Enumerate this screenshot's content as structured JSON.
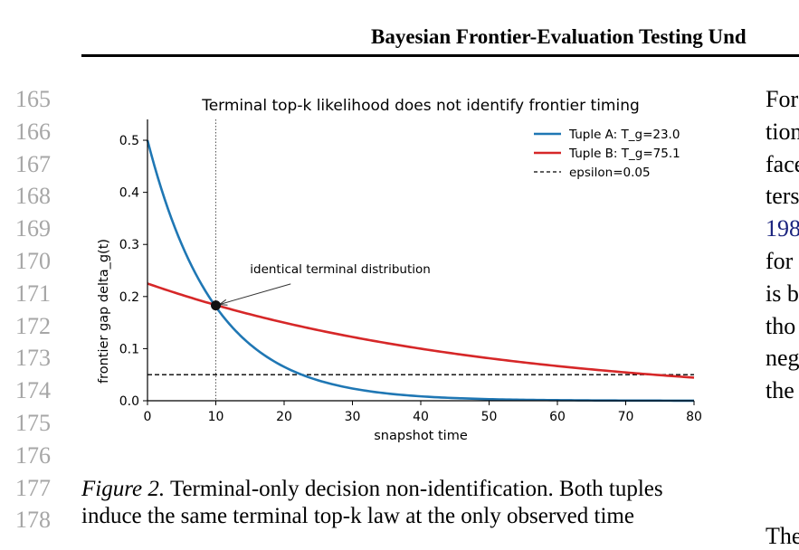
{
  "header": {
    "running_title": "Bayesian Frontier-Evaluation Testing Und"
  },
  "line_numbers": [
    "165",
    "166",
    "167",
    "168",
    "169",
    "170",
    "171",
    "172",
    "173",
    "174",
    "175",
    "176",
    "177",
    "178"
  ],
  "right_column": {
    "lines": [
      "For",
      "tion",
      "face",
      "ters",
      "198",
      "for",
      "is b",
      "tho",
      "neg",
      "the"
    ],
    "bottom": "The"
  },
  "chart_data": {
    "type": "line",
    "title": "Terminal top-k likelihood does not identify frontier timing",
    "xlabel": "snapshot time",
    "ylabel": "frontier gap delta_g(t)",
    "xlim": [
      0,
      80
    ],
    "ylim": [
      0,
      0.54
    ],
    "xticks": [
      0,
      10,
      20,
      30,
      40,
      50,
      60,
      70,
      80
    ],
    "yticks": [
      0.0,
      0.1,
      0.2,
      0.3,
      0.4,
      0.5
    ],
    "grid": false,
    "legend_position": "top-right",
    "series": [
      {
        "name": "Tuple A: T_g=23.0",
        "color": "#1f77b4",
        "style": "solid",
        "function": "exponential-decay",
        "start": 0.5,
        "half_life": 6.8
      },
      {
        "name": "Tuple B: T_g=75.1",
        "color": "#d62728",
        "style": "solid",
        "function": "exponential-decay",
        "start": 0.225,
        "half_life": 34.16
      }
    ],
    "reference_lines": [
      {
        "name": "epsilon=0.05",
        "orientation": "horizontal",
        "value": 0.05,
        "color": "#000000",
        "style": "dashed"
      },
      {
        "orientation": "vertical",
        "value": 10,
        "color": "#555555",
        "style": "dotted"
      }
    ],
    "marker_point": {
      "x": 10,
      "y": 0.183
    },
    "annotation": {
      "text": "identical terminal distribution",
      "x": 15,
      "y": 0.245
    }
  },
  "caption": {
    "label": "Figure 2.",
    "line1": "Terminal-only decision non-identification. Both tuples",
    "line2": "induce the same terminal top-k law at the only observed time"
  }
}
